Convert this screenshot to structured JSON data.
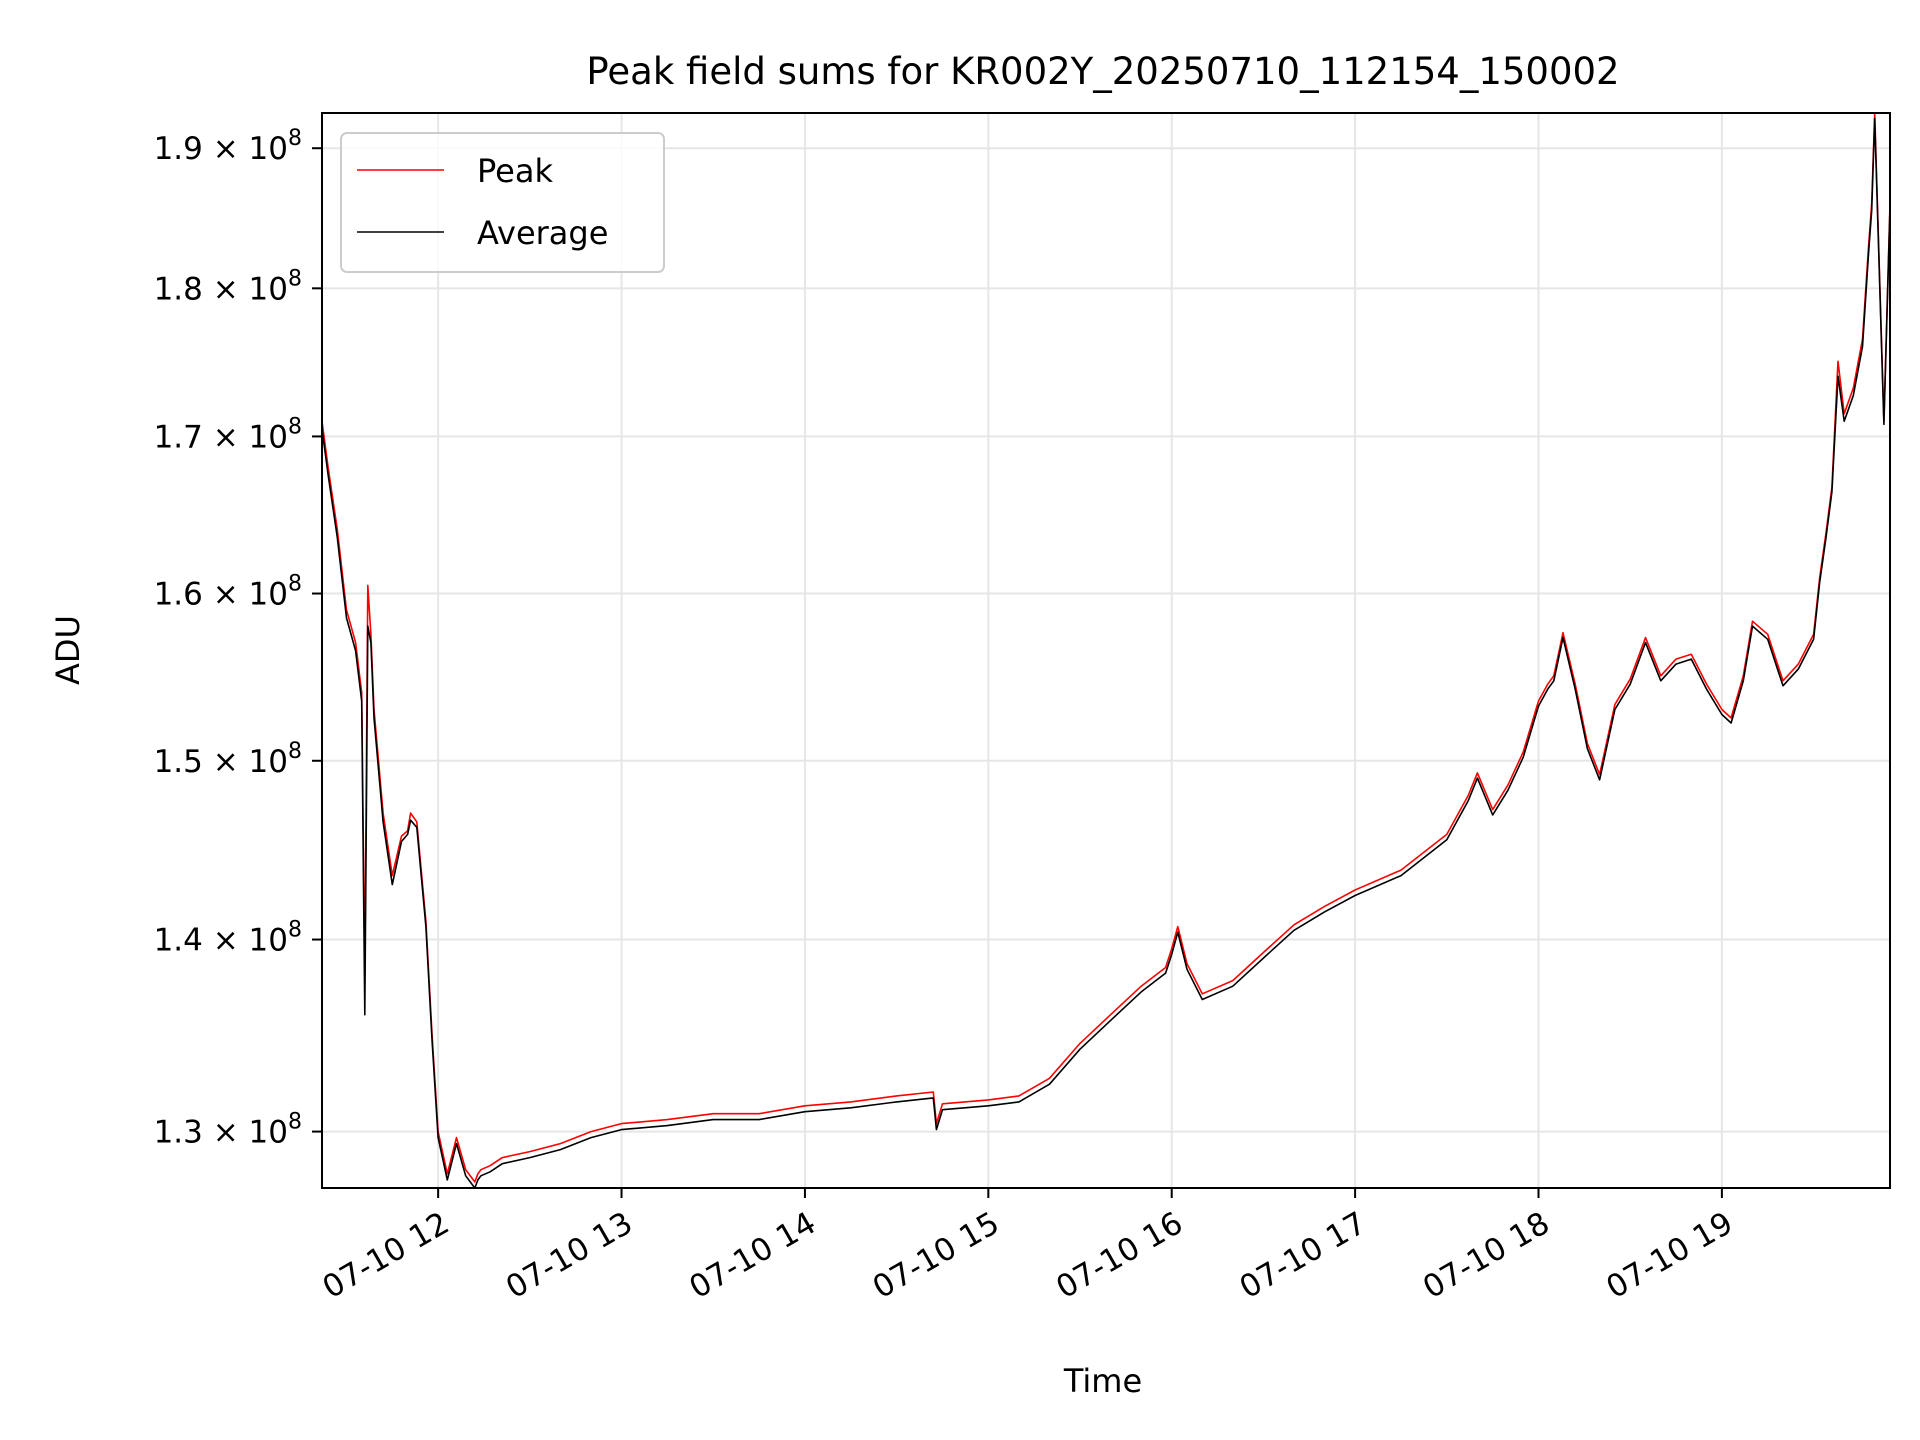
{
  "chart_data": {
    "type": "line",
    "title": "Peak field sums for KR002Y_20250710_112154_150002",
    "xlabel": "Time",
    "ylabel": "ADU",
    "x_unit": "hours",
    "xlim": [
      "07-10 11:22",
      "07-10 19:55"
    ],
    "ylim": [
      127200000,
      192600000
    ],
    "y_scale": "log",
    "grid": true,
    "legend_position": "top-left",
    "x_ticks": [
      {
        "value": "07-10 12:00",
        "label": "07-10 12"
      },
      {
        "value": "07-10 13:00",
        "label": "07-10 13"
      },
      {
        "value": "07-10 14:00",
        "label": "07-10 14"
      },
      {
        "value": "07-10 15:00",
        "label": "07-10 15"
      },
      {
        "value": "07-10 16:00",
        "label": "07-10 16"
      },
      {
        "value": "07-10 17:00",
        "label": "07-10 17"
      },
      {
        "value": "07-10 18:00",
        "label": "07-10 18"
      },
      {
        "value": "07-10 19:00",
        "label": "07-10 19"
      }
    ],
    "y_ticks": [
      {
        "value": 130000000,
        "mantissa": "1.3",
        "base": "10",
        "exponent": "8"
      },
      {
        "value": 140000000,
        "mantissa": "1.4",
        "base": "10",
        "exponent": "8"
      },
      {
        "value": 150000000,
        "mantissa": "1.5",
        "base": "10",
        "exponent": "8"
      },
      {
        "value": 160000000,
        "mantissa": "1.6",
        "base": "10",
        "exponent": "8"
      },
      {
        "value": 170000000,
        "mantissa": "1.7",
        "base": "10",
        "exponent": "8"
      },
      {
        "value": 180000000,
        "mantissa": "1.8",
        "base": "10",
        "exponent": "8"
      },
      {
        "value": 190000000,
        "mantissa": "1.9",
        "base": "10",
        "exponent": "8"
      }
    ],
    "x": [
      "11:22",
      "11:24",
      "11:27",
      "11:30",
      "11:33",
      "11:35",
      "11:36",
      "11:37",
      "11:38",
      "11:39",
      "11:42",
      "11:45",
      "11:48",
      "11:50",
      "11:51",
      "11:53",
      "11:56",
      "11:58",
      "12:00",
      "12:03",
      "12:06",
      "12:09",
      "12:12",
      "12:13",
      "12:14",
      "12:17",
      "12:21",
      "12:30",
      "12:40",
      "12:50",
      "13:00",
      "13:15",
      "13:30",
      "13:45",
      "14:00",
      "14:15",
      "14:30",
      "14:42",
      "14:43",
      "14:45",
      "15:00",
      "15:10",
      "15:20",
      "15:30",
      "15:40",
      "15:50",
      "15:58",
      "16:00",
      "16:02",
      "16:05",
      "16:10",
      "16:20",
      "16:30",
      "16:40",
      "16:50",
      "17:00",
      "17:15",
      "17:30",
      "17:37",
      "17:40",
      "17:45",
      "17:50",
      "17:55",
      "18:00",
      "18:03",
      "18:05",
      "18:08",
      "18:12",
      "18:16",
      "18:20",
      "18:25",
      "18:30",
      "18:35",
      "18:40",
      "18:45",
      "18:50",
      "18:55",
      "19:00",
      "19:03",
      "19:07",
      "19:10",
      "19:15",
      "19:20",
      "19:25",
      "19:30",
      "19:32",
      "19:34",
      "19:36",
      "19:38",
      "19:40",
      "19:43",
      "19:46",
      "19:48",
      "19:49",
      "19:50",
      "19:53",
      "19:55"
    ],
    "series": [
      {
        "name": "Peak",
        "color": "#ff0000",
        "values": [
          171000000,
          168000000,
          164000000,
          159000000,
          157000000,
          154000000,
          138000000,
          160500000,
          157500000,
          153000000,
          147000000,
          143500000,
          145700000,
          146000000,
          147000000,
          146500000,
          141000000,
          135000000,
          130000000,
          127900000,
          129700000,
          128100000,
          127500000,
          127900000,
          128100000,
          128300000,
          128700000,
          129000000,
          129400000,
          130000000,
          130400000,
          130600000,
          130900000,
          130900000,
          131300000,
          131500000,
          131800000,
          132000000,
          130400000,
          131400000,
          131600000,
          131800000,
          132700000,
          134500000,
          136000000,
          137500000,
          138500000,
          139500000,
          140700000,
          138700000,
          137100000,
          137800000,
          139300000,
          140800000,
          141800000,
          142700000,
          143800000,
          145800000,
          148000000,
          149300000,
          147200000,
          148600000,
          150500000,
          153500000,
          154500000,
          155000000,
          157600000,
          154500000,
          151000000,
          149200000,
          153300000,
          154800000,
          157300000,
          155000000,
          156000000,
          156300000,
          154500000,
          153000000,
          152500000,
          155000000,
          158300000,
          157500000,
          154700000,
          155700000,
          157500000,
          161000000,
          163700000,
          166700000,
          175000000,
          171500000,
          173200000,
          176500000,
          183000000,
          186000000,
          192600000,
          171000000,
          186000000
        ]
      },
      {
        "name": "Average",
        "color": "#000000",
        "values": [
          170500000,
          167500000,
          163500000,
          158500000,
          156500000,
          153500000,
          136000000,
          158000000,
          157000000,
          152500000,
          146500000,
          143000000,
          145400000,
          145800000,
          146600000,
          146200000,
          140700000,
          134700000,
          129700000,
          127600000,
          129400000,
          127800000,
          127200000,
          127600000,
          127800000,
          128000000,
          128400000,
          128700000,
          129100000,
          129700000,
          130100000,
          130300000,
          130600000,
          130600000,
          131000000,
          131200000,
          131500000,
          131700000,
          130100000,
          131100000,
          131300000,
          131500000,
          132400000,
          134200000,
          135700000,
          137200000,
          138200000,
          139200000,
          140400000,
          138400000,
          136800000,
          137500000,
          139000000,
          140500000,
          141500000,
          142400000,
          143500000,
          145500000,
          147700000,
          149000000,
          146900000,
          148300000,
          150200000,
          153200000,
          154200000,
          154700000,
          157300000,
          154200000,
          150700000,
          148900000,
          153000000,
          154500000,
          157000000,
          154700000,
          155700000,
          156000000,
          154200000,
          152700000,
          152200000,
          154700000,
          158000000,
          157200000,
          154400000,
          155400000,
          157200000,
          160700000,
          163400000,
          166400000,
          174000000,
          171000000,
          172700000,
          176000000,
          182500000,
          185500000,
          192200000,
          170800000,
          185700000
        ]
      }
    ]
  }
}
